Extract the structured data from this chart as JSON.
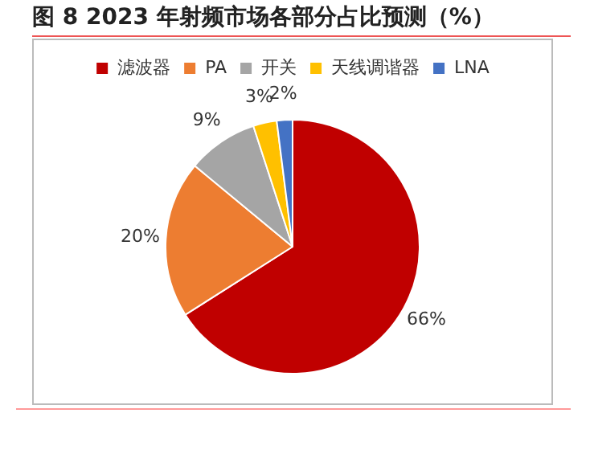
{
  "chart_data": {
    "type": "pie",
    "title": "图 8 2023 年射频市场各部分占比预测（%）",
    "categories": [
      "滤波器",
      "PA",
      "开关",
      "天线调谐器",
      "LNA"
    ],
    "values": [
      66,
      20,
      9,
      3,
      2
    ],
    "colors": [
      "#c00000",
      "#ed7d31",
      "#a5a5a5",
      "#ffc000",
      "#4472c4"
    ],
    "value_labels": [
      "66%",
      "20%",
      "9%",
      "3%",
      "2%"
    ],
    "legend": "top"
  }
}
